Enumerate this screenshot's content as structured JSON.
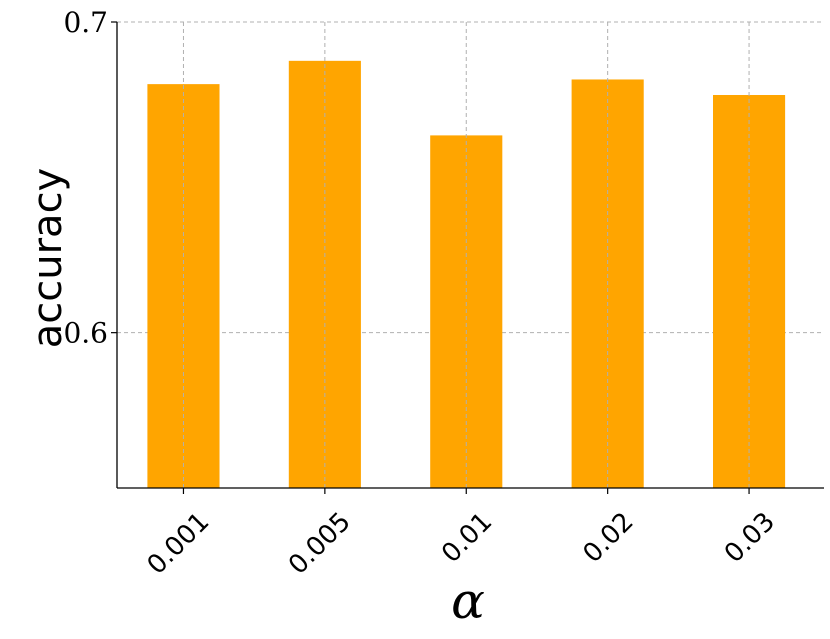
{
  "chart_data": {
    "type": "bar",
    "categories": [
      "0.001",
      "0.005",
      "0.01",
      "0.02",
      "0.03"
    ],
    "values": [
      0.68,
      0.6875,
      0.6635,
      0.6815,
      0.6765
    ],
    "xlabel": "α",
    "ylabel": "accuracy",
    "ylim": [
      0.55,
      0.7
    ],
    "yticks": [
      0.6,
      0.7
    ],
    "ytick_labels": [
      "0.6",
      "0.7"
    ],
    "grid": true,
    "bar_color": "#ffa500",
    "grid_color": "#b0b0b0"
  }
}
